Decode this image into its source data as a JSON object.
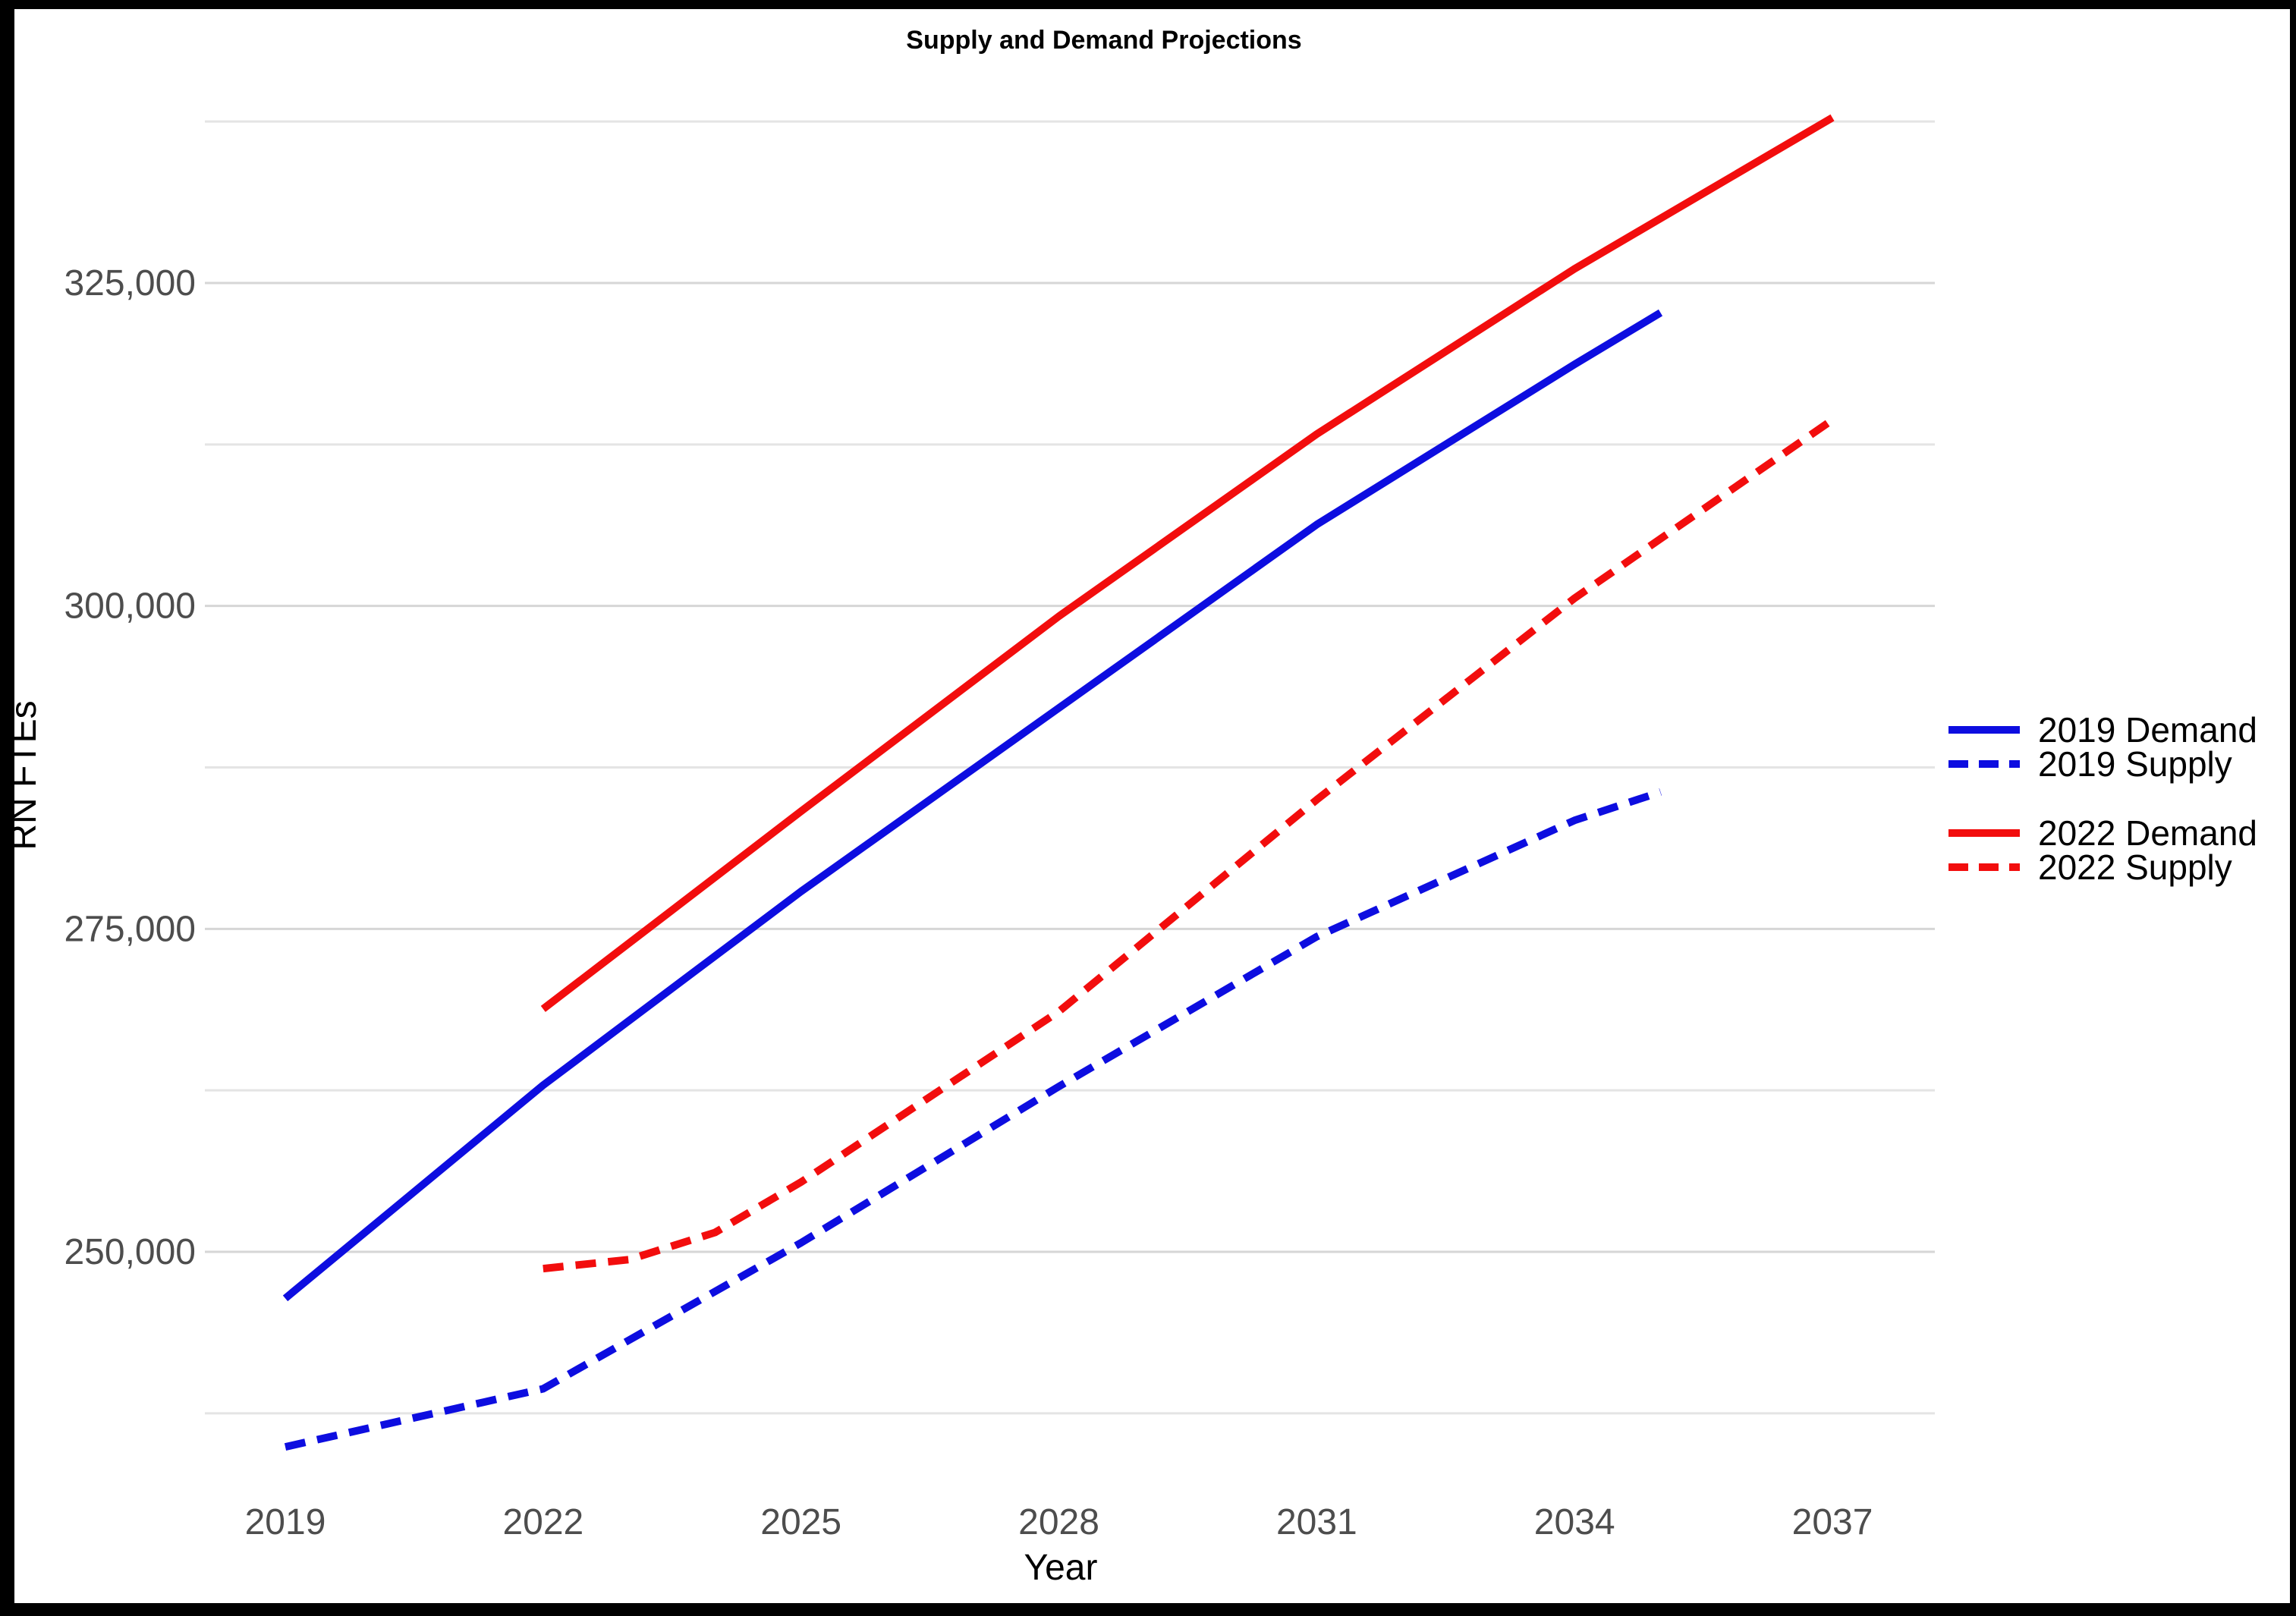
{
  "title": "Supply and Demand Projections",
  "axes": {
    "x_title": "Year",
    "y_title": "RN FTEs"
  },
  "colors": {
    "blue_series": "#0d0de0",
    "red_series": "#f20d0d",
    "tick_label": "#4d4d4d",
    "axis_title": "#000000",
    "title": "#000000",
    "grid_major": "#d6d6d6",
    "grid_minor": "#e4e4e4",
    "frame": "#000000",
    "panel": "#ffffff"
  },
  "legend": {
    "items": [
      {
        "label": "2019 Demand",
        "color": "#0d0de0",
        "dashed": false,
        "group": 1
      },
      {
        "label": "2019 Supply",
        "color": "#0d0de0",
        "dashed": true,
        "group": 1
      },
      {
        "label": "2022 Demand",
        "color": "#f20d0d",
        "dashed": false,
        "group": 2
      },
      {
        "label": "2022 Supply",
        "color": "#f20d0d",
        "dashed": true,
        "group": 2
      }
    ]
  },
  "chart_data": {
    "type": "line",
    "title": "Supply and Demand Projections",
    "xlabel": "Year",
    "ylabel": "RN FTEs",
    "grid": "horizontal major and minor gridlines only",
    "legend_position": "right",
    "xlim": [
      2018.1,
      2038.2
    ],
    "ylim": [
      232000,
      341500
    ],
    "x_ticks": [
      "2019",
      "2022",
      "2025",
      "2028",
      "2031",
      "2034",
      "2037"
    ],
    "x_tick_years": [
      2019,
      2022,
      2025,
      2028,
      2031,
      2034,
      2037
    ],
    "y_ticks": [
      {
        "value": 250000,
        "label": "250,000"
      },
      {
        "value": 275000,
        "label": "275,000"
      },
      {
        "value": 300000,
        "label": "300,000"
      },
      {
        "value": 325000,
        "label": "325,000"
      }
    ],
    "y_minor_ticks": [
      237500,
      262500,
      287500,
      312500,
      337500
    ],
    "series": [
      {
        "name": "2019 Demand",
        "color": "#0d0de0",
        "dashed": false,
        "points": [
          [
            2019,
            246400
          ],
          [
            2022,
            262900
          ],
          [
            2025,
            277900
          ],
          [
            2028,
            292100
          ],
          [
            2031,
            306300
          ],
          [
            2034,
            318700
          ],
          [
            2035,
            322700
          ]
        ]
      },
      {
        "name": "2019 Supply",
        "color": "#0d0de0",
        "dashed": true,
        "points": [
          [
            2019,
            234900
          ],
          [
            2022,
            239400
          ],
          [
            2025,
            250700
          ],
          [
            2028,
            262800
          ],
          [
            2031,
            274400
          ],
          [
            2034,
            283400
          ],
          [
            2035,
            285600
          ]
        ]
      },
      {
        "name": "2022 Demand",
        "color": "#f20d0d",
        "dashed": false,
        "points": [
          [
            2022,
            268800
          ],
          [
            2025,
            284100
          ],
          [
            2028,
            299200
          ],
          [
            2031,
            313300
          ],
          [
            2034,
            326100
          ],
          [
            2037,
            337800
          ]
        ]
      },
      {
        "name": "2022 Supply",
        "color": "#f20d0d",
        "dashed": true,
        "points": [
          [
            2022,
            248700
          ],
          [
            2023,
            249400
          ],
          [
            2024,
            251500
          ],
          [
            2025,
            255400
          ],
          [
            2028,
            268600
          ],
          [
            2031,
            285000
          ],
          [
            2034,
            300600
          ],
          [
            2037,
            314400
          ]
        ]
      }
    ]
  }
}
